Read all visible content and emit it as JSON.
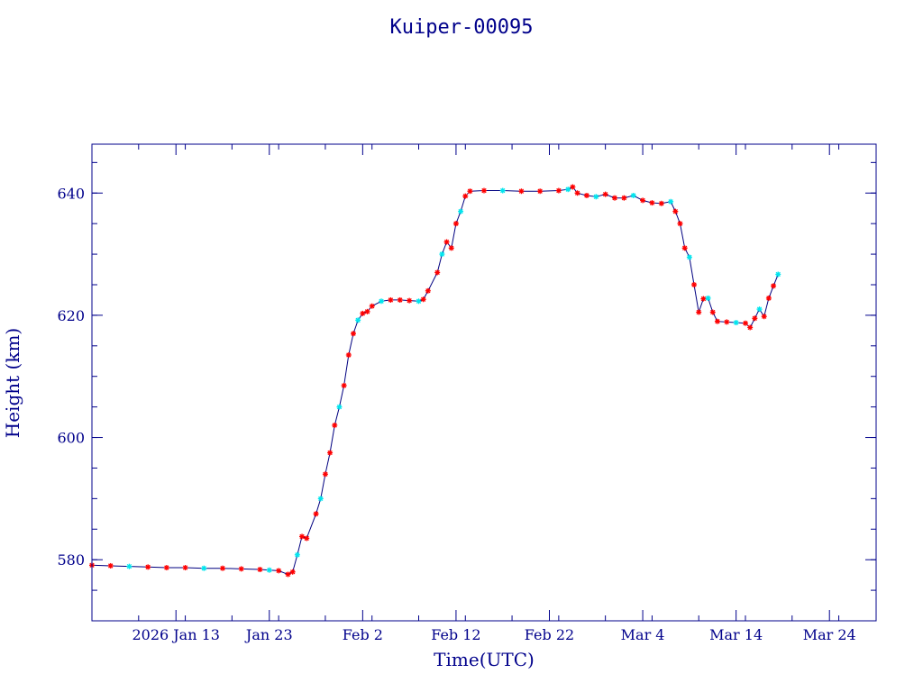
{
  "chart_data": {
    "type": "line",
    "title": "Kuiper-00095",
    "xlabel": "Time(UTC)",
    "ylabel": "Height (km)",
    "x_range": [
      "2026-01-04",
      "2026-03-29"
    ],
    "ylim": [
      570,
      648
    ],
    "x_ticks": [
      {
        "date": "2026-01-13",
        "label": "2026 Jan 13"
      },
      {
        "date": "2026-01-23",
        "label": "Jan 23"
      },
      {
        "date": "2026-02-02",
        "label": "Feb  2"
      },
      {
        "date": "2026-02-12",
        "label": "Feb 12"
      },
      {
        "date": "2026-02-22",
        "label": "Feb 22"
      },
      {
        "date": "2026-03-04",
        "label": "Mar  4"
      },
      {
        "date": "2026-03-14",
        "label": "Mar 14"
      },
      {
        "date": "2026-03-24",
        "label": "Mar 24"
      }
    ],
    "y_ticks": [
      {
        "value": 580,
        "label": "580"
      },
      {
        "value": 600,
        "label": "600"
      },
      {
        "value": 620,
        "label": "620"
      },
      {
        "value": 640,
        "label": "640"
      }
    ],
    "colors": {
      "line": "#000080",
      "marker_primary": "#ff0000",
      "marker_secondary": "#00e5ee",
      "axis": "#00008b"
    },
    "series": [
      {
        "points": [
          [
            "2026-01-04",
            579.1
          ],
          [
            "2026-01-06",
            579.0
          ],
          [
            "2026-01-08",
            578.9
          ],
          [
            "2026-01-10",
            578.8
          ],
          [
            "2026-01-12",
            578.7
          ],
          [
            "2026-01-14",
            578.7
          ],
          [
            "2026-01-16",
            578.6
          ],
          [
            "2026-01-18",
            578.6
          ],
          [
            "2026-01-20",
            578.5
          ],
          [
            "2026-01-22",
            578.4
          ],
          [
            "2026-01-23",
            578.3
          ],
          [
            "2026-01-24",
            578.2
          ],
          [
            "2026-01-25",
            577.6
          ],
          [
            "2026-01-25T12:00",
            578.0
          ],
          [
            "2026-01-26",
            580.8
          ],
          [
            "2026-01-26T12:00",
            583.8
          ],
          [
            "2026-01-27",
            583.5
          ],
          [
            "2026-01-28",
            587.5
          ],
          [
            "2026-01-28T12:00",
            590.0
          ],
          [
            "2026-01-29",
            594.0
          ],
          [
            "2026-01-29T12:00",
            597.5
          ],
          [
            "2026-01-30",
            602.0
          ],
          [
            "2026-01-30T12:00",
            605.0
          ],
          [
            "2026-01-31",
            608.5
          ],
          [
            "2026-01-31T12:00",
            613.5
          ],
          [
            "2026-02-01",
            617.0
          ],
          [
            "2026-02-01T12:00",
            619.2
          ],
          [
            "2026-02-02",
            620.3
          ],
          [
            "2026-02-02T12:00",
            620.6
          ],
          [
            "2026-02-03",
            621.5
          ],
          [
            "2026-02-04",
            622.3
          ],
          [
            "2026-02-05",
            622.5
          ],
          [
            "2026-02-06",
            622.5
          ],
          [
            "2026-02-07",
            622.4
          ],
          [
            "2026-02-08",
            622.3
          ],
          [
            "2026-02-08T12:00",
            622.6
          ],
          [
            "2026-02-09",
            624.0
          ],
          [
            "2026-02-10",
            627.0
          ],
          [
            "2026-02-10T12:00",
            630.0
          ],
          [
            "2026-02-11",
            632.0
          ],
          [
            "2026-02-11T12:00",
            631.0
          ],
          [
            "2026-02-12",
            635.0
          ],
          [
            "2026-02-12T12:00",
            637.0
          ],
          [
            "2026-02-13",
            639.5
          ],
          [
            "2026-02-13T12:00",
            640.3
          ],
          [
            "2026-02-15",
            640.4
          ],
          [
            "2026-02-17",
            640.4
          ],
          [
            "2026-02-19",
            640.3
          ],
          [
            "2026-02-21",
            640.3
          ],
          [
            "2026-02-23",
            640.4
          ],
          [
            "2026-02-24",
            640.6
          ],
          [
            "2026-02-24T12:00",
            641.0
          ],
          [
            "2026-02-25",
            640.0
          ],
          [
            "2026-02-26",
            639.6
          ],
          [
            "2026-02-27",
            639.4
          ],
          [
            "2026-02-28",
            639.8
          ],
          [
            "2026-03-01",
            639.2
          ],
          [
            "2026-03-02",
            639.2
          ],
          [
            "2026-03-03",
            639.6
          ],
          [
            "2026-03-04",
            638.8
          ],
          [
            "2026-03-05",
            638.4
          ],
          [
            "2026-03-06",
            638.3
          ],
          [
            "2026-03-07",
            638.6
          ],
          [
            "2026-03-07T12:00",
            637.0
          ],
          [
            "2026-03-08",
            635.0
          ],
          [
            "2026-03-08T12:00",
            631.0
          ],
          [
            "2026-03-09",
            629.5
          ],
          [
            "2026-03-09T12:00",
            625.0
          ],
          [
            "2026-03-10",
            620.5
          ],
          [
            "2026-03-10T12:00",
            622.7
          ],
          [
            "2026-03-11",
            622.8
          ],
          [
            "2026-03-11T12:00",
            620.5
          ],
          [
            "2026-03-12",
            619.0
          ],
          [
            "2026-03-13",
            618.9
          ],
          [
            "2026-03-14",
            618.8
          ],
          [
            "2026-03-15",
            618.7
          ],
          [
            "2026-03-15T12:00",
            618.0
          ],
          [
            "2026-03-16",
            619.5
          ],
          [
            "2026-03-16T12:00",
            621.0
          ],
          [
            "2026-03-17",
            619.8
          ],
          [
            "2026-03-17T12:00",
            622.8
          ],
          [
            "2026-03-18",
            624.8
          ],
          [
            "2026-03-18T12:00",
            626.7
          ]
        ]
      }
    ]
  }
}
